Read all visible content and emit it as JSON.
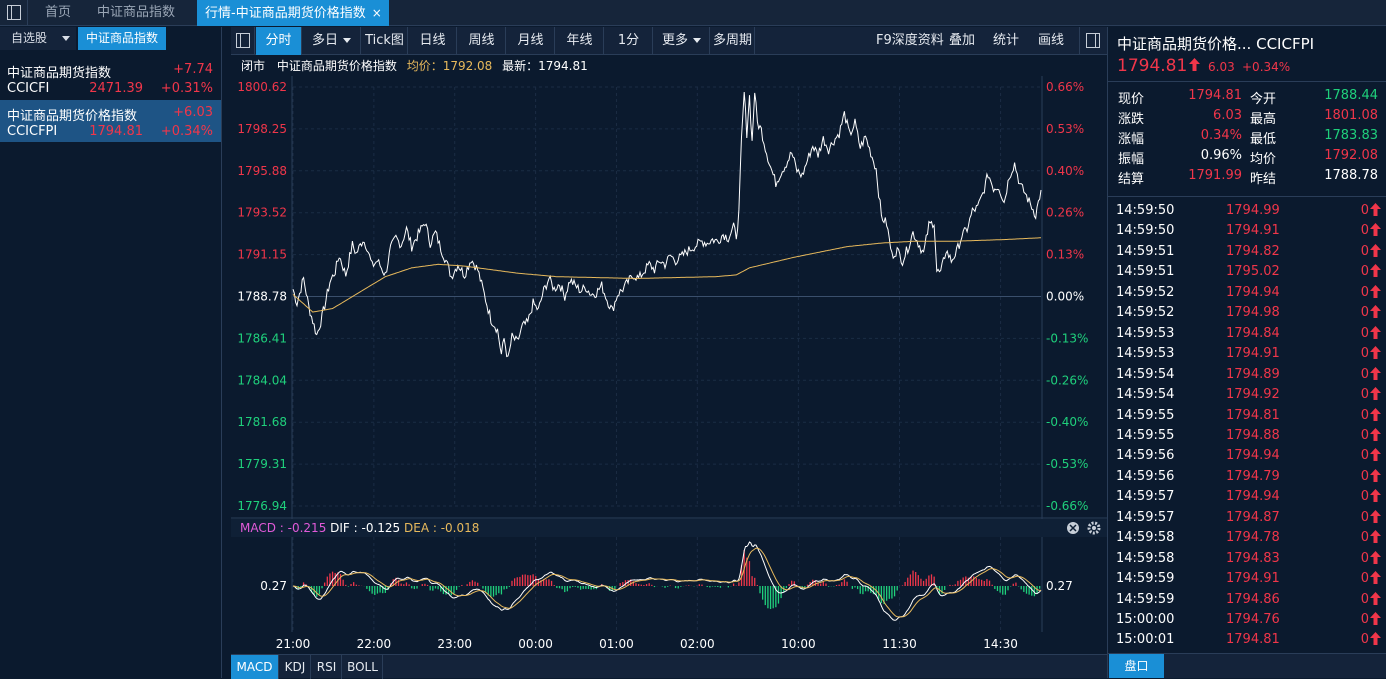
{
  "tabs": [
    {
      "label": "首页"
    },
    {
      "label": "中证商品指数"
    },
    {
      "label": "行情-中证商品期货价格指数",
      "close": "×"
    }
  ],
  "watchlist": {
    "tab_self": "自选股",
    "tab_group": "中证商品指数",
    "items": [
      {
        "name": "中证商品期货指数",
        "code": "CCICFI",
        "change": "+7.74",
        "price": "2471.39",
        "pct": "+0.31%"
      },
      {
        "name": "中证商品期货价格指数",
        "code": "CCICFPI",
        "change": "+6.03",
        "price": "1794.81",
        "pct": "+0.34%"
      }
    ]
  },
  "toolbar": {
    "buttons": [
      "分时",
      "多日",
      "Tick图",
      "日线",
      "周线",
      "月线",
      "年线",
      "1分",
      "更多",
      "多周期"
    ],
    "right": [
      "F9深度资料",
      "叠加",
      "统计",
      "画线"
    ]
  },
  "infobar": {
    "status": "闭市",
    "name": "中证商品期货价格指数",
    "avg_label": "均价：1792.08",
    "last_label": "最新：1794.81"
  },
  "bottom_tabs": [
    "MACD",
    "KDJ",
    "RSI",
    "BOLL"
  ],
  "colors": {
    "up": "#f0364a",
    "down": "#1fd07c",
    "avg": "#e7b95c",
    "accent": "#1a8fd6"
  },
  "chart_data": {
    "type": "line",
    "price_ticks": [
      "1800.62",
      "1798.25",
      "1795.88",
      "1793.52",
      "1791.15",
      "1788.78",
      "1786.41",
      "1784.04",
      "1781.68",
      "1779.31",
      "1776.94"
    ],
    "pct_ticks": [
      "0.66%",
      "0.53%",
      "0.40%",
      "0.26%",
      "0.13%",
      "0.00%",
      "-0.13%",
      "-0.26%",
      "-0.40%",
      "-0.53%",
      "-0.66%"
    ],
    "ylim": [
      1776.94,
      1800.62
    ],
    "prev_close": 1788.78,
    "time_ticks": [
      "21:00",
      "22:00",
      "23:00",
      "00:00",
      "01:00",
      "02:00",
      "10:00",
      "11:30",
      "14:30"
    ],
    "time_tick_index": [
      0,
      60,
      120,
      180,
      240,
      300,
      375,
      450,
      525
    ],
    "n_minutes": 555,
    "price_anchors": [
      [
        0,
        1789.2
      ],
      [
        3,
        1788.4
      ],
      [
        8,
        1789.8
      ],
      [
        12,
        1788.2
      ],
      [
        18,
        1786.6
      ],
      [
        22,
        1787.6
      ],
      [
        28,
        1789.6
      ],
      [
        32,
        1790.2
      ],
      [
        35,
        1791.1
      ],
      [
        40,
        1790.0
      ],
      [
        45,
        1791.7
      ],
      [
        48,
        1791.2
      ],
      [
        53,
        1792.0
      ],
      [
        56,
        1791.6
      ],
      [
        60,
        1790.5
      ],
      [
        64,
        1790.8
      ],
      [
        70,
        1790.0
      ],
      [
        74,
        1791.5
      ],
      [
        78,
        1792.1
      ],
      [
        82,
        1791.7
      ],
      [
        86,
        1792.6
      ],
      [
        90,
        1791.6
      ],
      [
        95,
        1792.3
      ],
      [
        100,
        1793.0
      ],
      [
        104,
        1791.8
      ],
      [
        108,
        1792.4
      ],
      [
        112,
        1791.5
      ],
      [
        116,
        1790.8
      ],
      [
        120,
        1789.9
      ],
      [
        125,
        1790.6
      ],
      [
        130,
        1790.0
      ],
      [
        135,
        1790.9
      ],
      [
        140,
        1790.3
      ],
      [
        145,
        1788.9
      ],
      [
        150,
        1787.5
      ],
      [
        155,
        1786.9
      ],
      [
        158,
        1785.5
      ],
      [
        160,
        1786.4
      ],
      [
        163,
        1785.2
      ],
      [
        166,
        1786.5
      ],
      [
        170,
        1786.2
      ],
      [
        174,
        1787.1
      ],
      [
        178,
        1787.3
      ],
      [
        182,
        1788.4
      ],
      [
        186,
        1788.0
      ],
      [
        190,
        1789.1
      ],
      [
        194,
        1789.8
      ],
      [
        198,
        1789.2
      ],
      [
        202,
        1789.5
      ],
      [
        206,
        1788.8
      ],
      [
        210,
        1789.7
      ],
      [
        214,
        1789.4
      ],
      [
        218,
        1789.1
      ],
      [
        222,
        1789.3
      ],
      [
        226,
        1788.9
      ],
      [
        230,
        1789.0
      ],
      [
        234,
        1789.4
      ],
      [
        238,
        1788.6
      ],
      [
        242,
        1788.0
      ],
      [
        246,
        1788.9
      ],
      [
        250,
        1789.2
      ],
      [
        254,
        1789.6
      ],
      [
        258,
        1790.0
      ],
      [
        262,
        1789.8
      ],
      [
        266,
        1790.2
      ],
      [
        270,
        1790.6
      ],
      [
        274,
        1790.3
      ],
      [
        278,
        1790.8
      ],
      [
        282,
        1790.6
      ],
      [
        286,
        1791.1
      ],
      [
        290,
        1790.8
      ],
      [
        294,
        1791.0
      ],
      [
        298,
        1791.3
      ],
      [
        302,
        1791.5
      ],
      [
        306,
        1791.7
      ],
      [
        310,
        1791.9
      ],
      [
        314,
        1791.8
      ],
      [
        318,
        1792.0
      ],
      [
        322,
        1791.9
      ],
      [
        326,
        1792.3
      ],
      [
        330,
        1792.1
      ],
      [
        334,
        1792.7
      ],
      [
        336,
        1792.2
      ],
      [
        338,
        1793.5
      ],
      [
        340,
        1797.6
      ],
      [
        342,
        1800.3
      ],
      [
        344,
        1798.0
      ],
      [
        346,
        1800.1
      ],
      [
        348,
        1797.5
      ],
      [
        350,
        1800.4
      ],
      [
        352,
        1798.6
      ],
      [
        355,
        1798.2
      ],
      [
        358,
        1797.2
      ],
      [
        362,
        1796.1
      ],
      [
        366,
        1795.2
      ],
      [
        370,
        1795.8
      ],
      [
        374,
        1796.3
      ],
      [
        378,
        1796.9
      ],
      [
        382,
        1795.9
      ],
      [
        386,
        1795.6
      ],
      [
        390,
        1796.5
      ],
      [
        394,
        1797.3
      ],
      [
        398,
        1796.8
      ],
      [
        402,
        1797.7
      ],
      [
        406,
        1797.1
      ],
      [
        410,
        1797.6
      ],
      [
        414,
        1798.0
      ],
      [
        418,
        1799.1
      ],
      [
        422,
        1797.9
      ],
      [
        426,
        1798.6
      ],
      [
        430,
        1797.2
      ],
      [
        434,
        1797.8
      ],
      [
        438,
        1796.9
      ],
      [
        442,
        1796.0
      ],
      [
        446,
        1793.3
      ],
      [
        450,
        1792.9
      ],
      [
        454,
        1791.1
      ],
      [
        458,
        1791.4
      ],
      [
        462,
        1790.8
      ],
      [
        466,
        1791.5
      ],
      [
        470,
        1792.4
      ],
      [
        474,
        1791.8
      ],
      [
        478,
        1791.2
      ],
      [
        482,
        1792.8
      ],
      [
        486,
        1793.0
      ],
      [
        488,
        1790.2
      ],
      [
        491,
        1790.1
      ],
      [
        495,
        1791.4
      ],
      [
        499,
        1790.8
      ],
      [
        503,
        1791.3
      ],
      [
        507,
        1792.2
      ],
      [
        511,
        1792.6
      ],
      [
        515,
        1793.6
      ],
      [
        519,
        1793.8
      ],
      [
        523,
        1794.6
      ],
      [
        527,
        1795.7
      ],
      [
        531,
        1794.9
      ],
      [
        535,
        1795.0
      ],
      [
        539,
        1794.1
      ],
      [
        543,
        1795.6
      ],
      [
        547,
        1796.3
      ],
      [
        551,
        1795.1
      ],
      [
        555,
        1794.6
      ],
      [
        559,
        1794.0
      ],
      [
        563,
        1793.4
      ],
      [
        567,
        1794.8
      ]
    ],
    "avg_anchors": [
      [
        0,
        1788.9
      ],
      [
        15,
        1787.9
      ],
      [
        30,
        1788.1
      ],
      [
        50,
        1789.0
      ],
      [
        70,
        1789.9
      ],
      [
        90,
        1790.4
      ],
      [
        110,
        1790.6
      ],
      [
        130,
        1790.5
      ],
      [
        150,
        1790.3
      ],
      [
        170,
        1790.1
      ],
      [
        200,
        1789.9
      ],
      [
        260,
        1789.8
      ],
      [
        320,
        1789.9
      ],
      [
        336,
        1790.0
      ],
      [
        346,
        1790.4
      ],
      [
        380,
        1791.0
      ],
      [
        420,
        1791.6
      ],
      [
        446,
        1791.8
      ],
      [
        470,
        1791.9
      ],
      [
        500,
        1791.9
      ],
      [
        540,
        1792.0
      ],
      [
        567,
        1792.1
      ]
    ],
    "macd": {
      "label": "MACD",
      "value": "-0.215",
      "dif_label": "DIF",
      "dif": "-0.125",
      "dea_label": "DEA",
      "dea": "-0.018",
      "axis_label": "0.27"
    }
  },
  "quote": {
    "title": "中证商品期货价格...",
    "code": "CCICFPI",
    "price": "1794.81",
    "change": "6.03",
    "pct": "+0.34%",
    "rows": [
      {
        "l1": "现价",
        "v1": "1794.81",
        "c1": "red",
        "l2": "今开",
        "v2": "1788.44",
        "c2": "green"
      },
      {
        "l1": "涨跌",
        "v1": "6.03",
        "c1": "red",
        "l2": "最高",
        "v2": "1801.08",
        "c2": "red"
      },
      {
        "l1": "涨幅",
        "v1": "0.34%",
        "c1": "red",
        "l2": "最低",
        "v2": "1783.83",
        "c2": "green"
      },
      {
        "l1": "振幅",
        "v1": "0.96%",
        "c1": "white",
        "l2": "均价",
        "v2": "1792.08",
        "c2": "red"
      },
      {
        "l1": "结算",
        "v1": "1791.99",
        "c1": "red",
        "l2": "昨结",
        "v2": "1788.78",
        "c2": "white"
      }
    ]
  },
  "ticks": [
    {
      "time": "14:59:50",
      "price": "1794.99",
      "vol": "0"
    },
    {
      "time": "14:59:50",
      "price": "1794.91",
      "vol": "0"
    },
    {
      "time": "14:59:51",
      "price": "1794.82",
      "vol": "0"
    },
    {
      "time": "14:59:51",
      "price": "1795.02",
      "vol": "0"
    },
    {
      "time": "14:59:52",
      "price": "1794.94",
      "vol": "0"
    },
    {
      "time": "14:59:52",
      "price": "1794.98",
      "vol": "0"
    },
    {
      "time": "14:59:53",
      "price": "1794.84",
      "vol": "0"
    },
    {
      "time": "14:59:53",
      "price": "1794.91",
      "vol": "0"
    },
    {
      "time": "14:59:54",
      "price": "1794.89",
      "vol": "0"
    },
    {
      "time": "14:59:54",
      "price": "1794.92",
      "vol": "0"
    },
    {
      "time": "14:59:55",
      "price": "1794.81",
      "vol": "0"
    },
    {
      "time": "14:59:55",
      "price": "1794.88",
      "vol": "0"
    },
    {
      "time": "14:59:56",
      "price": "1794.94",
      "vol": "0"
    },
    {
      "time": "14:59:56",
      "price": "1794.79",
      "vol": "0"
    },
    {
      "time": "14:59:57",
      "price": "1794.94",
      "vol": "0"
    },
    {
      "time": "14:59:57",
      "price": "1794.87",
      "vol": "0"
    },
    {
      "time": "14:59:58",
      "price": "1794.78",
      "vol": "0"
    },
    {
      "time": "14:59:58",
      "price": "1794.83",
      "vol": "0"
    },
    {
      "time": "14:59:59",
      "price": "1794.91",
      "vol": "0"
    },
    {
      "time": "14:59:59",
      "price": "1794.86",
      "vol": "0"
    },
    {
      "time": "15:00:00",
      "price": "1794.76",
      "vol": "0"
    },
    {
      "time": "15:00:01",
      "price": "1794.81",
      "vol": "0"
    }
  ],
  "panel_bottom_button": "盘口"
}
